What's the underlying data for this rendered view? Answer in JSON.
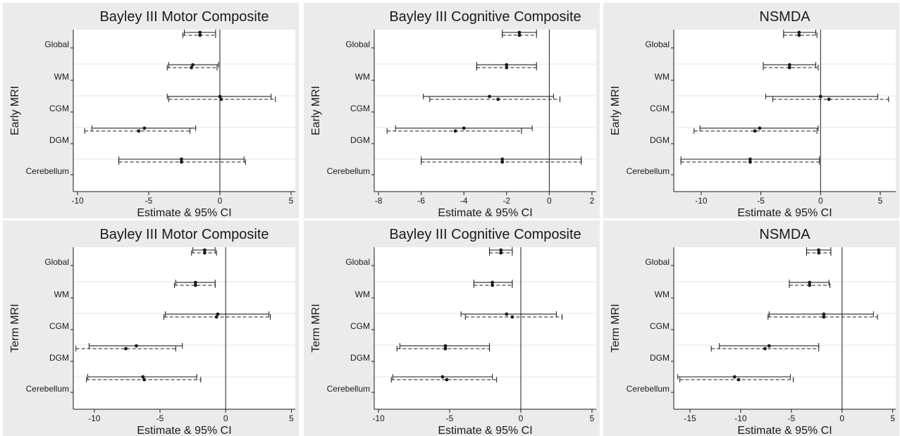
{
  "legend": {
    "solid_style": "solid line",
    "dashed_style": "dashed line"
  },
  "chart_data": [
    {
      "type": "forest",
      "row_label": "Early MRI",
      "title": "Bayley III Motor Composite",
      "xlabel": "Estimate & 95% CI",
      "xlim": [
        -10.3,
        5.3
      ],
      "xticks": [
        -10,
        -5,
        0,
        5
      ],
      "categories": [
        "Global",
        "WM",
        "CGM",
        "DGM",
        "Cerebellum"
      ],
      "series": [
        {
          "style": "solid",
          "estimates": [
            -1.4,
            -1.9,
            0.0,
            -5.3,
            -2.7
          ],
          "lower": [
            -2.5,
            -3.6,
            -3.7,
            -9.0,
            -7.1
          ],
          "upper": [
            -0.3,
            -0.1,
            3.6,
            -1.7,
            1.7
          ]
        },
        {
          "style": "dashed",
          "estimates": [
            -1.4,
            -2.0,
            0.1,
            -5.7,
            -2.7
          ],
          "lower": [
            -2.6,
            -3.7,
            -3.6,
            -9.5,
            -7.1
          ],
          "upper": [
            -0.3,
            -0.2,
            3.9,
            -2.1,
            1.8
          ]
        }
      ]
    },
    {
      "type": "forest",
      "row_label": "Early MRI",
      "title": "Bayley III Cognitive Composite",
      "xlabel": "Estimate & 95% CI",
      "xlim": [
        -8.2,
        2.2
      ],
      "xticks": [
        -8,
        -6,
        -4,
        -2,
        0,
        2
      ],
      "categories": [
        "Global",
        "WM",
        "CGM",
        "DGM",
        "Cerebellum"
      ],
      "series": [
        {
          "style": "solid",
          "estimates": [
            -1.4,
            -2.0,
            -2.8,
            -4.0,
            -2.2
          ],
          "lower": [
            -2.2,
            -3.4,
            -5.9,
            -7.2,
            -6.0
          ],
          "upper": [
            -0.6,
            -0.6,
            0.2,
            -0.8,
            1.5
          ]
        },
        {
          "style": "dashed",
          "estimates": [
            -1.4,
            -2.0,
            -2.4,
            -4.4,
            -2.2
          ],
          "lower": [
            -2.2,
            -3.4,
            -5.6,
            -7.6,
            -6.0
          ],
          "upper": [
            -0.6,
            -0.6,
            0.5,
            -1.3,
            1.5
          ]
        }
      ]
    },
    {
      "type": "forest",
      "row_label": "Early MRI",
      "title": "NSMDA",
      "xlabel": "Estimate & 95% CI",
      "xlim": [
        -12.3,
        6.3
      ],
      "xticks": [
        -10,
        -5,
        0,
        5
      ],
      "categories": [
        "Global",
        "WM",
        "CGM",
        "DGM",
        "Cerebellum"
      ],
      "series": [
        {
          "style": "solid",
          "estimates": [
            -1.8,
            -2.6,
            0.0,
            -5.1,
            -5.9
          ],
          "lower": [
            -3.1,
            -4.8,
            -4.6,
            -10.1,
            -11.7
          ],
          "upper": [
            -0.4,
            -0.4,
            4.8,
            -0.2,
            -0.1
          ]
        },
        {
          "style": "dashed",
          "estimates": [
            -1.8,
            -2.6,
            0.7,
            -5.5,
            -5.9
          ],
          "lower": [
            -3.1,
            -4.8,
            -4.0,
            -10.6,
            -11.7
          ],
          "upper": [
            -0.3,
            -0.2,
            5.7,
            -0.3,
            -0.1
          ]
        }
      ]
    },
    {
      "type": "forest",
      "row_label": "Term MRI",
      "title": "Bayley III Motor Composite",
      "xlabel": "Estimate & 95% CI",
      "xlim": [
        -11.6,
        5.3
      ],
      "xticks": [
        -10,
        -5,
        0,
        5
      ],
      "categories": [
        "Global",
        "WM",
        "CGM",
        "DGM",
        "Cerebellum"
      ],
      "series": [
        {
          "style": "solid",
          "estimates": [
            -1.6,
            -2.3,
            -0.6,
            -6.8,
            -6.3
          ],
          "lower": [
            -2.5,
            -3.8,
            -4.6,
            -10.4,
            -10.5
          ],
          "upper": [
            -0.8,
            -0.8,
            3.3,
            -3.3,
            -2.2
          ]
        },
        {
          "style": "dashed",
          "estimates": [
            -1.6,
            -2.3,
            -0.7,
            -7.6,
            -6.2
          ],
          "lower": [
            -2.6,
            -3.9,
            -4.7,
            -11.4,
            -10.6
          ],
          "upper": [
            -0.7,
            -0.8,
            3.4,
            -3.8,
            -1.9
          ]
        }
      ]
    },
    {
      "type": "forest",
      "row_label": "Term MRI",
      "title": "Bayley III Cognitive Composite",
      "xlabel": "Estimate & 95% CI",
      "xlim": [
        -10.3,
        5.3
      ],
      "xticks": [
        -10,
        -5,
        0,
        5
      ],
      "categories": [
        "Global",
        "WM",
        "CGM",
        "DGM",
        "Cerebellum"
      ],
      "series": [
        {
          "style": "solid",
          "estimates": [
            -1.4,
            -2.0,
            -1.0,
            -5.3,
            -5.5
          ],
          "lower": [
            -2.2,
            -3.3,
            -4.2,
            -8.5,
            -9.0
          ],
          "upper": [
            -0.6,
            -0.6,
            2.5,
            -2.2,
            -2.0
          ]
        },
        {
          "style": "dashed",
          "estimates": [
            -1.4,
            -2.0,
            -0.6,
            -5.3,
            -5.2
          ],
          "lower": [
            -2.2,
            -3.3,
            -3.9,
            -8.7,
            -9.1
          ],
          "upper": [
            -0.6,
            -0.6,
            2.9,
            -2.2,
            -1.7
          ]
        }
      ]
    },
    {
      "type": "forest",
      "row_label": "Term MRI",
      "title": "NSMDA",
      "xlabel": "Estimate & 95% CI",
      "xlim": [
        -16.6,
        5.3
      ],
      "xticks": [
        -15,
        -10,
        -5,
        0,
        5
      ],
      "categories": [
        "Global",
        "WM",
        "CGM",
        "DGM",
        "Cerebellum"
      ],
      "series": [
        {
          "style": "solid",
          "estimates": [
            -2.3,
            -3.2,
            -1.8,
            -7.2,
            -10.6
          ],
          "lower": [
            -3.5,
            -5.2,
            -7.2,
            -12.1,
            -16.2
          ],
          "upper": [
            -1.1,
            -1.3,
            3.1,
            -2.3,
            -5.1
          ]
        },
        {
          "style": "dashed",
          "estimates": [
            -2.3,
            -3.2,
            -1.8,
            -7.6,
            -10.2
          ],
          "lower": [
            -3.5,
            -5.2,
            -7.3,
            -12.9,
            -16.0
          ],
          "upper": [
            -1.1,
            -1.2,
            3.5,
            -2.3,
            -4.8
          ]
        }
      ]
    }
  ]
}
